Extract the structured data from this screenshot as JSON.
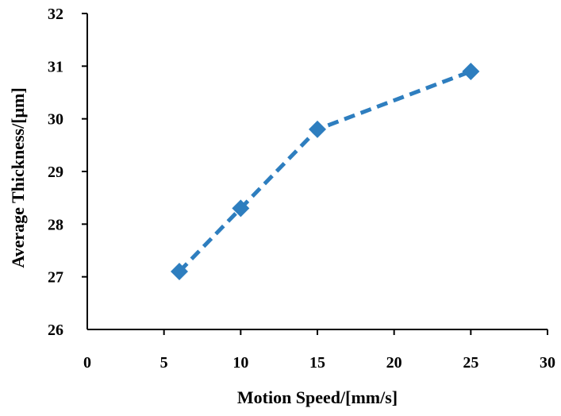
{
  "chart_data": {
    "type": "line",
    "title": "",
    "xlabel": "Motion Speed/[mm/s]",
    "ylabel": "Average Thickness/[μm]",
    "xlim": [
      0,
      30
    ],
    "ylim": [
      26,
      32
    ],
    "xticks": [
      0,
      5,
      10,
      15,
      20,
      25,
      30
    ],
    "yticks": [
      26,
      27,
      28,
      29,
      30,
      31,
      32
    ],
    "xtick_labels": [
      "0",
      "5",
      "10",
      "15",
      "20",
      "25",
      "30"
    ],
    "ytick_labels": [
      "26",
      "27",
      "28",
      "29",
      "30",
      "31",
      "32"
    ],
    "grid": false,
    "legend": "none",
    "series": [
      {
        "x": [
          6,
          10,
          15,
          25
        ],
        "y": [
          27.1,
          28.3,
          29.8,
          30.9
        ],
        "color": "#2e7ebf",
        "line_style": "dashed",
        "marker": "diamond"
      }
    ]
  }
}
